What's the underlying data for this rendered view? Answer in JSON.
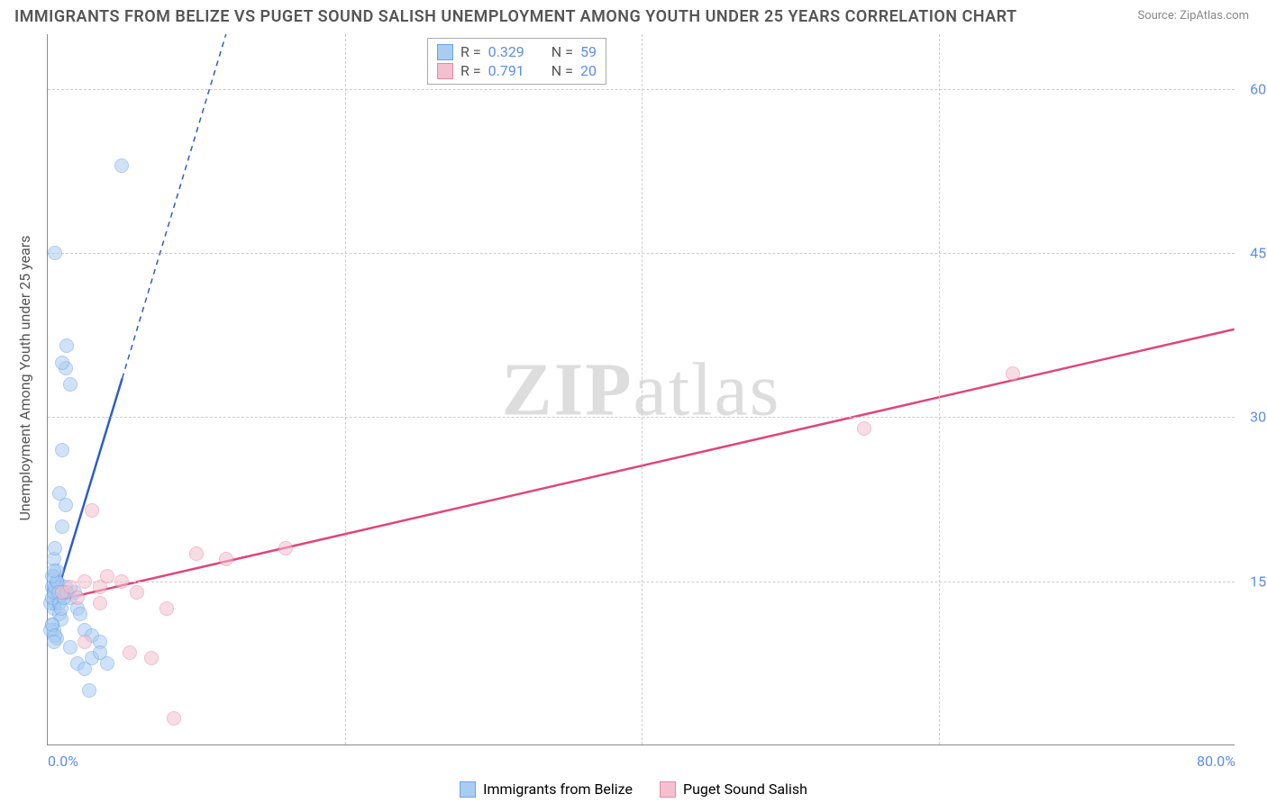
{
  "title": "IMMIGRANTS FROM BELIZE VS PUGET SOUND SALISH UNEMPLOYMENT AMONG YOUTH UNDER 25 YEARS CORRELATION CHART",
  "source_label": "Source: ZipAtlas.com",
  "watermark": {
    "zip": "ZIP",
    "atlas": "atlas"
  },
  "chart": {
    "type": "scatter",
    "xlim": [
      0,
      80
    ],
    "ylim": [
      0,
      65
    ],
    "x_ticks": [
      0,
      80
    ],
    "x_tick_labels": [
      "0.0%",
      "80.0%"
    ],
    "x_minor_ticks": [
      20,
      40,
      60
    ],
    "y_ticks": [
      15,
      30,
      45,
      60
    ],
    "y_tick_labels": [
      "15.0%",
      "30.0%",
      "45.0%",
      "60.0%"
    ],
    "y_axis_label": "Unemployment Among Youth under 25 years",
    "background_color": "#ffffff",
    "grid_color": "#cccccc",
    "axis_color": "#888888",
    "tick_label_color": "#5b8def",
    "tick_label_fontsize": 16,
    "point_radius": 8,
    "point_opacity": 0.55,
    "series": [
      {
        "name": "Immigrants from Belize",
        "color_fill": "#a9ccf3",
        "color_stroke": "#6ba3e6",
        "r": 0.329,
        "n": 59,
        "trend_color": "#2e5cc9",
        "trend_solid": [
          [
            0.3,
            12.5
          ],
          [
            5.0,
            33.5
          ]
        ],
        "trend_dashed": [
          [
            5.0,
            33.5
          ],
          [
            12.0,
            65.0
          ]
        ],
        "points": [
          [
            0.3,
            14.5
          ],
          [
            0.4,
            13.8
          ],
          [
            0.5,
            14.2
          ],
          [
            0.6,
            15.0
          ],
          [
            0.4,
            12.5
          ],
          [
            0.5,
            13.0
          ],
          [
            0.7,
            14.8
          ],
          [
            0.8,
            13.5
          ],
          [
            0.5,
            15.5
          ],
          [
            0.6,
            16.0
          ],
          [
            1.0,
            14.0
          ],
          [
            1.2,
            14.5
          ],
          [
            0.8,
            12.0
          ],
          [
            0.9,
            11.5
          ],
          [
            1.5,
            13.5
          ],
          [
            1.8,
            14.0
          ],
          [
            2.0,
            12.5
          ],
          [
            2.2,
            12.0
          ],
          [
            0.4,
            17.0
          ],
          [
            0.5,
            18.0
          ],
          [
            1.0,
            20.0
          ],
          [
            1.2,
            22.0
          ],
          [
            0.8,
            23.0
          ],
          [
            2.5,
            10.5
          ],
          [
            3.0,
            10.0
          ],
          [
            3.5,
            9.5
          ],
          [
            2.0,
            7.5
          ],
          [
            2.5,
            7.0
          ],
          [
            3.0,
            8.0
          ],
          [
            1.5,
            9.0
          ],
          [
            2.8,
            5.0
          ],
          [
            3.5,
            8.5
          ],
          [
            4.0,
            7.5
          ],
          [
            1.0,
            27.0
          ],
          [
            1.5,
            33.0
          ],
          [
            1.2,
            34.5
          ],
          [
            1.0,
            35.0
          ],
          [
            1.3,
            36.5
          ],
          [
            0.5,
            45.0
          ],
          [
            5.0,
            53.0
          ],
          [
            0.3,
            11.0
          ],
          [
            0.4,
            10.5
          ],
          [
            0.6,
            9.8
          ],
          [
            0.2,
            13.0
          ],
          [
            0.3,
            13.5
          ],
          [
            0.4,
            14.0
          ],
          [
            0.5,
            14.5
          ],
          [
            0.6,
            15.0
          ],
          [
            0.7,
            14.0
          ],
          [
            0.8,
            13.0
          ],
          [
            0.9,
            12.5
          ],
          [
            1.1,
            13.5
          ],
          [
            1.3,
            14.0
          ],
          [
            0.3,
            15.5
          ],
          [
            0.4,
            16.0
          ],
          [
            0.2,
            10.5
          ],
          [
            0.3,
            11.0
          ],
          [
            0.5,
            10.0
          ],
          [
            0.4,
            9.5
          ]
        ]
      },
      {
        "name": "Puget Sound Salish",
        "color_fill": "#f4c0cf",
        "color_stroke": "#e888a8",
        "r": 0.791,
        "n": 20,
        "trend_color": "#e0457a",
        "trend_solid": [
          [
            0.0,
            13.0
          ],
          [
            80.0,
            38.0
          ]
        ],
        "trend_dashed": null,
        "points": [
          [
            1.0,
            14.0
          ],
          [
            1.5,
            14.5
          ],
          [
            2.0,
            13.5
          ],
          [
            2.5,
            15.0
          ],
          [
            3.5,
            13.0
          ],
          [
            5.0,
            15.0
          ],
          [
            6.0,
            14.0
          ],
          [
            8.0,
            12.5
          ],
          [
            10.0,
            17.5
          ],
          [
            12.0,
            17.0
          ],
          [
            16.0,
            18.0
          ],
          [
            5.5,
            8.5
          ],
          [
            7.0,
            8.0
          ],
          [
            3.0,
            21.5
          ],
          [
            3.5,
            14.5
          ],
          [
            4.0,
            15.5
          ],
          [
            2.5,
            9.5
          ],
          [
            55.0,
            29.0
          ],
          [
            65.0,
            34.0
          ],
          [
            8.5,
            2.5
          ]
        ]
      }
    ]
  },
  "legend_top": {
    "r_label": "R =",
    "n_label": "N ="
  },
  "legend_bottom_labels": [
    "Immigrants from Belize",
    "Puget Sound Salish"
  ]
}
